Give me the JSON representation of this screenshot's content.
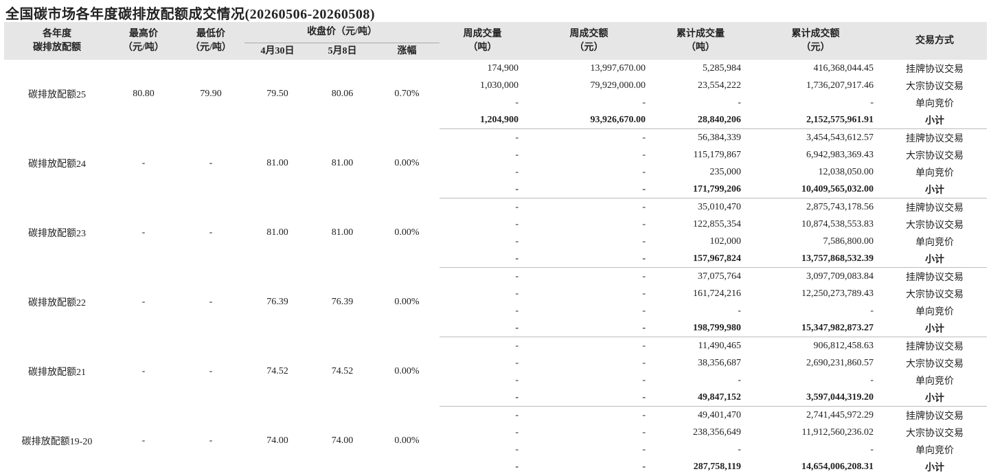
{
  "title": "全国碳市场各年度碳排放配额成交情况(20260506-20260508)",
  "header": {
    "year": [
      "各年度",
      "碳排放配额"
    ],
    "high": [
      "最高价",
      "（元/吨）"
    ],
    "low": [
      "最低价",
      "（元/吨）"
    ],
    "close": "收盘价（元/吨）",
    "apr30": "4月30日",
    "may8": "5月8日",
    "change": "涨幅",
    "week_volume": [
      "周成交量",
      "（吨）"
    ],
    "week_amount": [
      "周成交额",
      "（元）"
    ],
    "cum_volume": [
      "累计成交量",
      "（吨）"
    ],
    "cum_amount": [
      "累计成交额",
      "（元）"
    ],
    "method": "交易方式"
  },
  "groups": [
    {
      "name": "碳排放配额25",
      "high": "80.80",
      "low": "79.90",
      "apr30": "79.50",
      "may8": "80.06",
      "change": "0.70%",
      "rows": [
        [
          "174,900",
          "13,997,670.00",
          "5,285,984",
          "416,368,044.45",
          "挂牌协议交易"
        ],
        [
          "1,030,000",
          "79,929,000.00",
          "23,554,222",
          "1,736,207,917.46",
          "大宗协议交易"
        ],
        [
          "-",
          "-",
          "-",
          "-",
          "单向竞价"
        ],
        [
          "1,204,900",
          "93,926,670.00",
          "28,840,206",
          "2,152,575,961.91",
          "小计"
        ]
      ]
    },
    {
      "name": "碳排放配额24",
      "high": "-",
      "low": "-",
      "apr30": "81.00",
      "may8": "81.00",
      "change": "0.00%",
      "rows": [
        [
          "-",
          "-",
          "56,384,339",
          "3,454,543,612.57",
          "挂牌协议交易"
        ],
        [
          "-",
          "-",
          "115,179,867",
          "6,942,983,369.43",
          "大宗协议交易"
        ],
        [
          "-",
          "-",
          "235,000",
          "12,038,050.00",
          "单向竞价"
        ],
        [
          "-",
          "-",
          "171,799,206",
          "10,409,565,032.00",
          "小计"
        ]
      ]
    },
    {
      "name": "碳排放配额23",
      "high": "-",
      "low": "-",
      "apr30": "81.00",
      "may8": "81.00",
      "change": "0.00%",
      "rows": [
        [
          "-",
          "-",
          "35,010,470",
          "2,875,743,178.56",
          "挂牌协议交易"
        ],
        [
          "-",
          "-",
          "122,855,354",
          "10,874,538,553.83",
          "大宗协议交易"
        ],
        [
          "-",
          "-",
          "102,000",
          "7,586,800.00",
          "单向竞价"
        ],
        [
          "-",
          "-",
          "157,967,824",
          "13,757,868,532.39",
          "小计"
        ]
      ]
    },
    {
      "name": "碳排放配额22",
      "high": "-",
      "low": "-",
      "apr30": "76.39",
      "may8": "76.39",
      "change": "0.00%",
      "rows": [
        [
          "-",
          "-",
          "37,075,764",
          "3,097,709,083.84",
          "挂牌协议交易"
        ],
        [
          "-",
          "-",
          "161,724,216",
          "12,250,273,789.43",
          "大宗协议交易"
        ],
        [
          "-",
          "-",
          "-",
          "-",
          "单向竞价"
        ],
        [
          "-",
          "-",
          "198,799,980",
          "15,347,982,873.27",
          "小计"
        ]
      ]
    },
    {
      "name": "碳排放配额21",
      "high": "-",
      "low": "-",
      "apr30": "74.52",
      "may8": "74.52",
      "change": "0.00%",
      "rows": [
        [
          "-",
          "-",
          "11,490,465",
          "906,812,458.63",
          "挂牌协议交易"
        ],
        [
          "-",
          "-",
          "38,356,687",
          "2,690,231,860.57",
          "大宗协议交易"
        ],
        [
          "-",
          "-",
          "-",
          "-",
          "单向竞价"
        ],
        [
          "-",
          "-",
          "49,847,152",
          "3,597,044,319.20",
          "小计"
        ]
      ]
    },
    {
      "name": "碳排放配额19-20",
      "high": "-",
      "low": "-",
      "apr30": "74.00",
      "may8": "74.00",
      "change": "0.00%",
      "rows": [
        [
          "-",
          "-",
          "49,401,470",
          "2,741,445,972.29",
          "挂牌协议交易"
        ],
        [
          "-",
          "-",
          "238,356,649",
          "11,912,560,236.02",
          "大宗协议交易"
        ],
        [
          "-",
          "-",
          "-",
          "-",
          "单向竞价"
        ],
        [
          "-",
          "-",
          "287,758,119",
          "14,654,006,208.31",
          "小计"
        ]
      ]
    }
  ]
}
